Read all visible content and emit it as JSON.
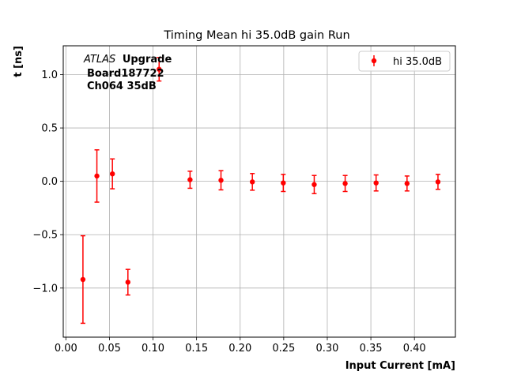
{
  "chart_data": {
    "type": "scatter",
    "title": "Timing Mean hi 35.0dB gain Run",
    "xlabel": "Input Current [mA]",
    "ylabel": "t [ns]",
    "xlim": [
      -0.003,
      0.447
    ],
    "ylim": [
      -1.46,
      1.27
    ],
    "xticks": [
      0.0,
      0.05,
      0.1,
      0.15,
      0.2,
      0.25,
      0.3,
      0.35,
      0.4
    ],
    "xtick_labels": [
      "0.00",
      "0.05",
      "0.10",
      "0.15",
      "0.20",
      "0.25",
      "0.30",
      "0.35",
      "0.40"
    ],
    "yticks": [
      -1.0,
      -0.5,
      0.0,
      0.5,
      1.0
    ],
    "ytick_labels": [
      "−1.0",
      "−0.5",
      "0.0",
      "0.5",
      "1.0"
    ],
    "grid": true,
    "legend_position": "top-right",
    "annotation": {
      "experiment": "ATLAS",
      "tag": "Upgrade",
      "line2": "Board187722",
      "line3": "Ch064 35dB"
    },
    "series": [
      {
        "name": "hi 35.0dB",
        "color": "#ff0000",
        "points": [
          {
            "x": 0.0196,
            "y": -0.92,
            "err": 0.41
          },
          {
            "x": 0.0356,
            "y": 0.05,
            "err": 0.245
          },
          {
            "x": 0.0534,
            "y": 0.07,
            "err": 0.14
          },
          {
            "x": 0.0712,
            "y": -0.945,
            "err": 0.12
          },
          {
            "x": 0.107,
            "y": 1.05,
            "err": 0.11
          },
          {
            "x": 0.1425,
            "y": 0.015,
            "err": 0.08
          },
          {
            "x": 0.178,
            "y": 0.01,
            "err": 0.09
          },
          {
            "x": 0.214,
            "y": -0.005,
            "err": 0.078
          },
          {
            "x": 0.2495,
            "y": -0.015,
            "err": 0.08
          },
          {
            "x": 0.285,
            "y": -0.03,
            "err": 0.085
          },
          {
            "x": 0.3205,
            "y": -0.02,
            "err": 0.075
          },
          {
            "x": 0.356,
            "y": -0.015,
            "err": 0.075
          },
          {
            "x": 0.3915,
            "y": -0.02,
            "err": 0.07
          },
          {
            "x": 0.427,
            "y": -0.005,
            "err": 0.07
          }
        ]
      }
    ]
  }
}
